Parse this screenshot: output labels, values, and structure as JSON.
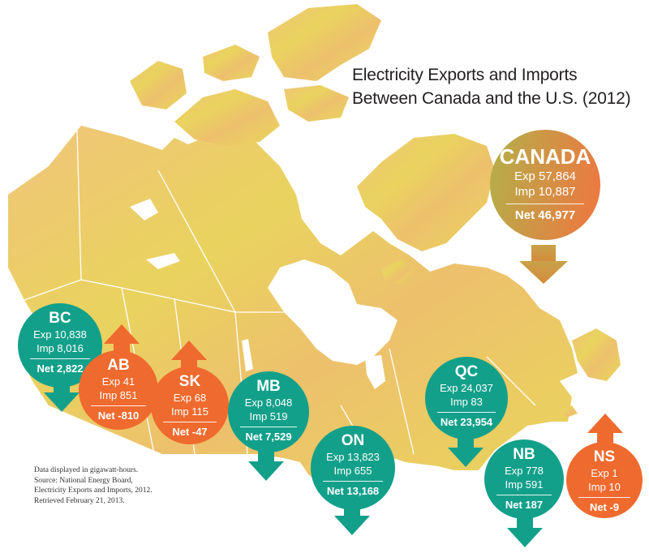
{
  "title": {
    "line1": "Electricity Exports and Imports",
    "line2": "Between Canada and the U.S. (2012)"
  },
  "colors": {
    "teal": "#13a08b",
    "orange": "#ef6a2e",
    "land_light": "#e6d95a",
    "land_warm": "#eeb774",
    "canada_gradient_start": "#b3b04a",
    "canada_gradient_end": "#f07a46"
  },
  "canada": {
    "name": "CANADA",
    "exp": "Exp 57,864",
    "imp": "Imp 10,887",
    "net": "Net 46,977",
    "direction": "export"
  },
  "provinces": [
    {
      "id": "bc",
      "name": "BC",
      "exp": "Exp 10,838",
      "imp": "Imp 8,016",
      "net": "Net 2,822",
      "direction": "export"
    },
    {
      "id": "ab",
      "name": "AB",
      "exp": "Exp 41",
      "imp": "Imp 851",
      "net": "Net -810",
      "direction": "import"
    },
    {
      "id": "sk",
      "name": "SK",
      "exp": "Exp 68",
      "imp": "Imp 115",
      "net": "Net -47",
      "direction": "import"
    },
    {
      "id": "mb",
      "name": "MB",
      "exp": "Exp 8,048",
      "imp": "Imp 519",
      "net": "Net 7,529",
      "direction": "export"
    },
    {
      "id": "on",
      "name": "ON",
      "exp": "Exp 13,823",
      "imp": "Imp 655",
      "net": "Net 13,168",
      "direction": "export"
    },
    {
      "id": "qc",
      "name": "QC",
      "exp": "Exp 24,037",
      "imp": "Imp 83",
      "net": "Net 23,954",
      "direction": "export"
    },
    {
      "id": "nb",
      "name": "NB",
      "exp": "Exp 778",
      "imp": "Imp 591",
      "net": "Net 187",
      "direction": "export"
    },
    {
      "id": "ns",
      "name": "NS",
      "exp": "Exp 1",
      "imp": "Imp 10",
      "net": "Net -9",
      "direction": "import"
    }
  ],
  "note": {
    "line1": "Data displayed in gigawatt-hours.",
    "line2": "Source: National Energy Board,",
    "line3": "Electricity Exports and Imports, 2012.",
    "line4": "Retrieved February 21, 2013."
  }
}
